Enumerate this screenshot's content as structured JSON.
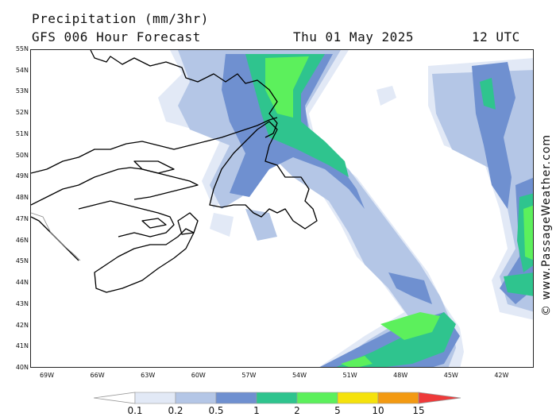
{
  "header": {
    "title": "Precipitation (mm/3hr)",
    "subtitle": "GFS 006 Hour Forecast",
    "datetime": "Thu 01 May 2025",
    "time": "12 UTC"
  },
  "copyright": "© www.PassageWeather.com",
  "map": {
    "lat_labels": [
      "55N",
      "54N",
      "53N",
      "52N",
      "51N",
      "50N",
      "49N",
      "48N",
      "47N",
      "46N",
      "45N",
      "44N",
      "43N",
      "42N",
      "41N",
      "40N"
    ],
    "lon_labels": [
      "69W",
      "66W",
      "63W",
      "60W",
      "57W",
      "54W",
      "51W",
      "48W",
      "45W",
      "42W"
    ]
  },
  "legend": {
    "labels": [
      "0.1",
      "0.2",
      "0.5",
      "1",
      "2",
      "5",
      "10",
      "15"
    ],
    "colors": {
      "c01": "#e2e9f6",
      "c02": "#b4c6e6",
      "c05": "#6f90d0",
      "c1": "#2fc48e",
      "c2": "#5cf05c",
      "c5": "#f5e20c",
      "c10": "#f39a12",
      "c15": "#ee3a3a"
    }
  }
}
